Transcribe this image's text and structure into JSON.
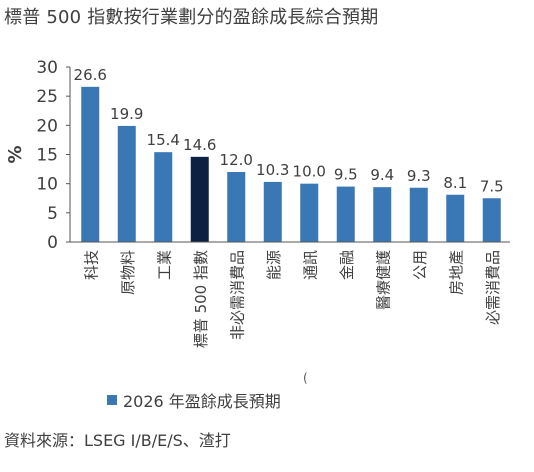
{
  "title": "標普 500 指數按行業劃分的盈餘成長綜合預期",
  "source": "資料來源：LSEG I/B/E/S、渣打",
  "stray_mark": "(",
  "colors": {
    "bar": "#3a78b5",
    "highlight": "#0d2242",
    "axis": "#555555",
    "text": "#404040"
  },
  "chart_data": {
    "type": "bar",
    "ylabel": "%",
    "ylim": [
      0,
      30
    ],
    "yticks": [
      0,
      5,
      10,
      15,
      20,
      25,
      30
    ],
    "grid": false,
    "legend_position": "bottom-left",
    "categories": [
      "科技",
      "原物料",
      "工業",
      "標普 500 指數",
      "非必需消費品",
      "能源",
      "通訊",
      "金融",
      "醫療健護",
      "公用",
      "房地產",
      "必需消費品"
    ],
    "highlight_category": "標普 500 指數",
    "series": [
      {
        "name": "2026 年盈餘成長預期",
        "values": [
          26.6,
          19.9,
          15.4,
          14.6,
          12.0,
          10.3,
          10.0,
          9.5,
          9.4,
          9.3,
          8.1,
          7.5
        ],
        "labels": [
          "26.6",
          "19.9",
          "15.4",
          "14.6",
          "12.0",
          "10.3",
          "10.0",
          "9.5",
          "9.4",
          "9.3",
          "8.1",
          "7.5"
        ]
      }
    ]
  }
}
